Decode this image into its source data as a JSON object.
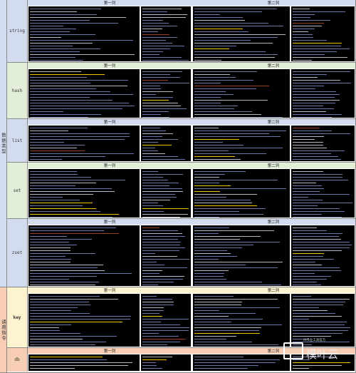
{
  "colors": {
    "blue_band": "#d3dcee",
    "green_band": "#e3eed9",
    "orange_band": "#f7cdb3",
    "yellow_band": "#fdf3cf",
    "line_blue": "#7c8cc4",
    "highlight": "#f2c200"
  },
  "categories": [
    {
      "label": "数据类型",
      "color": "#d3dcee"
    },
    {
      "label": "通用指令",
      "color": "#f7cdb3"
    }
  ],
  "sections": [
    {
      "name": "string",
      "color": "#d3dcee",
      "col1_header": "第一列",
      "col2_header": "第二列"
    },
    {
      "name": "hash",
      "color": "#e3eed9",
      "col1_header": "第一列",
      "col2_header": "第二列"
    },
    {
      "name": "list",
      "color": "#d3dcee",
      "col1_header": "第一列",
      "col2_header": "第二列"
    },
    {
      "name": "set",
      "color": "#e3eed9",
      "col1_header": "第一列",
      "col2_header": "第二列"
    },
    {
      "name": "zset",
      "color": "#d3dcee",
      "col1_header": "第一列",
      "col2_header": "第二列"
    },
    {
      "name": "key",
      "color": "#fdf3cf",
      "col1_header": "第一列",
      "col2_header": "第二列"
    },
    {
      "name": "db",
      "color": "#f7cdb3",
      "col1_header": "第一列",
      "col2_header": "第二列"
    }
  ],
  "watermark": {
    "logo_icon": "ai-box-icon",
    "text": "模叶云",
    "small": "AI作业工具官方"
  }
}
